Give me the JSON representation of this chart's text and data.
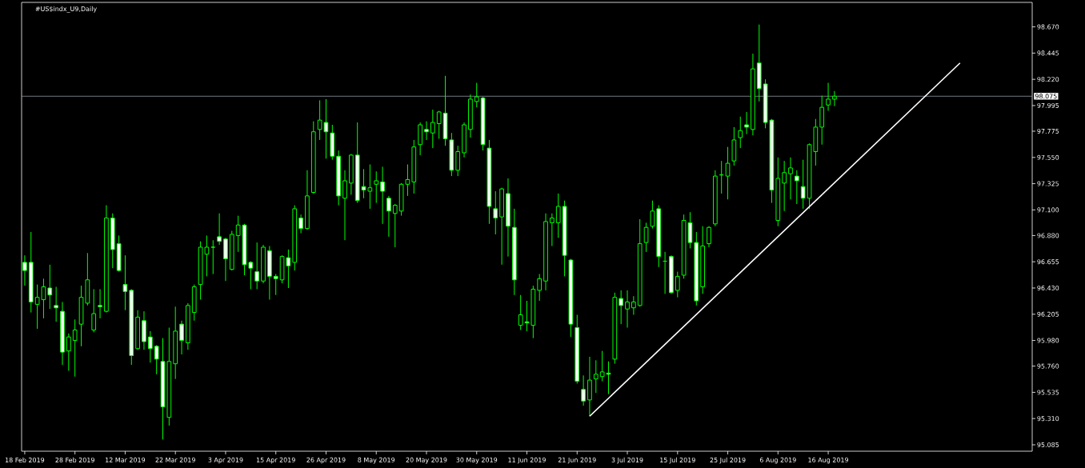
{
  "chart_data": {
    "type": "candlestick",
    "title": "#US$indx_U9,Daily",
    "categories": [
      "18 Feb 2019",
      null,
      null,
      null,
      null,
      null,
      null,
      null,
      "28 Feb 2019",
      null,
      null,
      null,
      null,
      null,
      null,
      null,
      "12 Mar 2019",
      null,
      null,
      null,
      null,
      null,
      null,
      null,
      "22 Mar 2019",
      null,
      null,
      null,
      null,
      null,
      null,
      null,
      "3 Apr 2019",
      null,
      null,
      null,
      null,
      null,
      null,
      null,
      "15 Apr 2019",
      null,
      null,
      null,
      null,
      null,
      null,
      null,
      "26 Apr 2019",
      null,
      null,
      null,
      null,
      null,
      null,
      null,
      "8 May 2019",
      null,
      null,
      null,
      null,
      null,
      null,
      null,
      "20 May 2019",
      null,
      null,
      null,
      null,
      null,
      null,
      null,
      "30 May 2019",
      null,
      null,
      null,
      null,
      null,
      null,
      null,
      "11 Jun 2019",
      null,
      null,
      null,
      null,
      null,
      null,
      null,
      "21 Jun 2019",
      null,
      null,
      null,
      null,
      null,
      null,
      null,
      "3 Jul 2019",
      null,
      null,
      null,
      null,
      null,
      null,
      null,
      "15 Jul 2019",
      null,
      null,
      null,
      null,
      null,
      null,
      null,
      "25 Jul 2019",
      null,
      null,
      null,
      null,
      null,
      null,
      null,
      "6 Aug 2019",
      null,
      null,
      null,
      null,
      null,
      null,
      null,
      "16 Aug 2019",
      null,
      null,
      null,
      null,
      null,
      null,
      null,
      null,
      null,
      null,
      null,
      null,
      null,
      null,
      null,
      null,
      null,
      null,
      null,
      null,
      null,
      null,
      null,
      null,
      null,
      null,
      null,
      null,
      null,
      null,
      null,
      null
    ],
    "ylim": [
      95.03,
      98.88
    ],
    "yticks": [
      {
        "value": 95.085,
        "label": "95.085"
      },
      {
        "value": 95.31,
        "label": "95.310"
      },
      {
        "value": 95.535,
        "label": "95.535"
      },
      {
        "value": 95.76,
        "label": "95.760"
      },
      {
        "value": 95.98,
        "label": "95.980"
      },
      {
        "value": 96.205,
        "label": "96.205"
      },
      {
        "value": 96.43,
        "label": "96.430"
      },
      {
        "value": 96.655,
        "label": "96.655"
      },
      {
        "value": 96.88,
        "label": "96.880"
      },
      {
        "value": 97.1,
        "label": "97.100"
      },
      {
        "value": 97.325,
        "label": "97.325"
      },
      {
        "value": 97.55,
        "label": "97.550"
      },
      {
        "value": 97.775,
        "label": "97.775"
      },
      {
        "value": 97.995,
        "label": "97.995"
      },
      {
        "value": 98.22,
        "label": "98.220"
      },
      {
        "value": 98.445,
        "label": "98.445"
      },
      {
        "value": 98.67,
        "label": "98.670"
      }
    ],
    "ref_lines": [
      {
        "axis": "y",
        "value": 98.075,
        "label": "98.075",
        "color": "#8c96a0"
      }
    ],
    "series": [
      {
        "color": "#00ff00",
        "ohlc": [
          [
            96.65,
            96.71,
            96.45,
            96.58
          ],
          [
            96.65,
            96.91,
            96.22,
            96.31
          ],
          [
            96.29,
            96.46,
            96.08,
            96.35
          ],
          [
            96.33,
            96.51,
            96.17,
            96.44
          ],
          [
            96.43,
            96.63,
            96.25,
            96.37
          ],
          [
            96.28,
            96.44,
            96.14,
            96.26
          ],
          [
            96.23,
            96.31,
            95.77,
            95.88
          ],
          [
            95.89,
            96.04,
            95.72,
            96.01
          ],
          [
            95.98,
            96.16,
            95.67,
            96.07
          ],
          [
            96.12,
            96.45,
            95.93,
            96.35
          ],
          [
            96.3,
            96.73,
            96.28,
            96.5
          ],
          [
            96.07,
            96.42,
            96.05,
            96.21
          ],
          [
            96.28,
            96.42,
            96.17,
            96.27
          ],
          [
            96.23,
            97.14,
            96.22,
            97.03
          ],
          [
            97.03,
            97.07,
            96.6,
            96.76
          ],
          [
            96.81,
            96.88,
            96.57,
            96.58
          ],
          [
            96.46,
            96.71,
            96.24,
            96.4
          ],
          [
            96.41,
            96.42,
            95.77,
            95.85
          ],
          [
            95.91,
            96.24,
            95.9,
            96.18
          ],
          [
            96.15,
            96.23,
            95.9,
            95.97
          ],
          [
            96.01,
            96.06,
            95.79,
            95.91
          ],
          [
            95.93,
            95.94,
            95.69,
            95.82
          ],
          [
            95.8,
            96.0,
            95.13,
            95.41
          ],
          [
            95.32,
            96.09,
            95.25,
            95.8
          ],
          [
            95.78,
            96.27,
            95.65,
            96.06
          ],
          [
            96.12,
            96.15,
            95.86,
            95.98
          ],
          [
            95.96,
            96.3,
            95.9,
            96.28
          ],
          [
            96.22,
            96.46,
            96.15,
            96.44
          ],
          [
            96.46,
            96.83,
            96.33,
            96.78
          ],
          [
            96.72,
            96.88,
            96.53,
            96.78
          ],
          [
            96.78,
            96.84,
            96.55,
            96.78
          ],
          [
            96.87,
            97.07,
            96.8,
            96.83
          ],
          [
            96.85,
            96.86,
            96.49,
            96.68
          ],
          [
            96.59,
            96.92,
            96.58,
            96.89
          ],
          [
            96.88,
            97.05,
            96.74,
            96.97
          ],
          [
            96.97,
            96.98,
            96.54,
            96.63
          ],
          [
            96.65,
            96.66,
            96.42,
            96.6
          ],
          [
            96.57,
            96.82,
            96.42,
            96.49
          ],
          [
            96.49,
            96.8,
            96.47,
            96.78
          ],
          [
            96.75,
            96.79,
            96.33,
            96.53
          ],
          [
            96.53,
            96.55,
            96.37,
            96.51
          ],
          [
            96.5,
            96.71,
            96.47,
            96.7
          ],
          [
            96.69,
            96.76,
            96.43,
            96.62
          ],
          [
            96.65,
            97.14,
            96.58,
            97.11
          ],
          [
            97.03,
            97.06,
            96.9,
            96.94
          ],
          [
            96.94,
            97.44,
            96.93,
            97.22
          ],
          [
            97.25,
            97.86,
            97.24,
            97.77
          ],
          [
            97.79,
            98.04,
            97.7,
            97.87
          ],
          [
            97.85,
            98.05,
            97.54,
            97.77
          ],
          [
            97.76,
            97.83,
            97.53,
            97.56
          ],
          [
            97.56,
            97.61,
            97.14,
            97.22
          ],
          [
            97.2,
            97.44,
            96.84,
            97.35
          ],
          [
            97.33,
            97.58,
            97.23,
            97.57
          ],
          [
            97.57,
            97.85,
            97.16,
            97.18
          ],
          [
            97.3,
            97.45,
            97.2,
            97.27
          ],
          [
            97.26,
            97.49,
            97.11,
            97.29
          ],
          [
            97.32,
            97.43,
            97.16,
            97.35
          ],
          [
            97.34,
            97.47,
            96.98,
            97.26
          ],
          [
            97.2,
            97.22,
            96.87,
            97.09
          ],
          [
            97.07,
            97.15,
            96.78,
            97.14
          ],
          [
            97.09,
            97.33,
            97.05,
            97.32
          ],
          [
            97.32,
            97.49,
            97.22,
            97.36
          ],
          [
            97.34,
            97.7,
            97.24,
            97.64
          ],
          [
            97.66,
            97.85,
            97.57,
            97.83
          ],
          [
            97.79,
            97.86,
            97.7,
            97.77
          ],
          [
            97.76,
            97.96,
            97.63,
            97.85
          ],
          [
            97.84,
            97.95,
            97.71,
            97.94
          ],
          [
            97.93,
            98.25,
            97.65,
            97.71
          ],
          [
            97.7,
            97.76,
            97.39,
            97.44
          ],
          [
            97.44,
            97.65,
            97.39,
            97.6
          ],
          [
            97.59,
            97.85,
            97.55,
            97.83
          ],
          [
            97.79,
            98.09,
            97.72,
            98.05
          ],
          [
            98.03,
            98.19,
            97.98,
            98.07
          ],
          [
            98.06,
            98.07,
            97.61,
            97.66
          ],
          [
            97.63,
            97.7,
            96.98,
            97.13
          ],
          [
            97.11,
            97.26,
            96.89,
            97.03
          ],
          [
            97.04,
            97.29,
            96.63,
            97.28
          ],
          [
            97.24,
            97.37,
            96.7,
            96.96
          ],
          [
            96.95,
            97.11,
            96.37,
            96.5
          ],
          [
            96.11,
            96.37,
            96.07,
            96.2
          ],
          [
            96.14,
            96.32,
            96.06,
            96.13
          ],
          [
            96.11,
            96.45,
            96.0,
            96.42
          ],
          [
            96.41,
            96.55,
            96.32,
            96.51
          ],
          [
            96.49,
            97.07,
            96.41,
            97.0
          ],
          [
            96.99,
            97.07,
            96.79,
            97.03
          ],
          [
            96.99,
            97.24,
            96.86,
            97.13
          ],
          [
            97.13,
            97.18,
            96.53,
            96.71
          ],
          [
            96.67,
            96.68,
            96.01,
            96.12
          ],
          [
            96.09,
            96.2,
            95.61,
            95.63
          ],
          [
            95.56,
            95.68,
            95.42,
            95.46
          ],
          [
            95.47,
            95.84,
            95.33,
            95.64
          ],
          [
            95.65,
            95.81,
            95.53,
            95.69
          ],
          [
            95.67,
            95.89,
            95.63,
            95.71
          ],
          [
            95.7,
            95.8,
            95.52,
            95.69
          ],
          [
            95.82,
            96.39,
            95.78,
            96.35
          ],
          [
            96.34,
            96.41,
            96.12,
            96.28
          ],
          [
            96.25,
            96.41,
            96.09,
            96.31
          ],
          [
            96.26,
            96.36,
            96.2,
            96.31
          ],
          [
            96.28,
            97.02,
            96.27,
            96.81
          ],
          [
            96.82,
            96.99,
            96.74,
            96.95
          ],
          [
            96.96,
            97.18,
            96.94,
            97.09
          ],
          [
            97.11,
            97.14,
            96.61,
            96.7
          ],
          [
            96.66,
            96.74,
            96.38,
            96.66
          ],
          [
            96.7,
            96.71,
            96.38,
            96.39
          ],
          [
            96.41,
            96.57,
            96.35,
            96.53
          ],
          [
            96.54,
            97.06,
            96.51,
            97.01
          ],
          [
            96.99,
            97.08,
            96.77,
            96.82
          ],
          [
            96.82,
            96.91,
            96.28,
            96.32
          ],
          [
            96.44,
            96.96,
            96.38,
            96.79
          ],
          [
            96.81,
            96.96,
            96.78,
            96.95
          ],
          [
            96.98,
            97.44,
            96.96,
            97.39
          ],
          [
            97.4,
            97.52,
            97.24,
            97.4
          ],
          [
            97.39,
            97.64,
            97.19,
            97.5
          ],
          [
            97.52,
            97.81,
            97.48,
            97.7
          ],
          [
            97.72,
            97.9,
            97.63,
            97.78
          ],
          [
            97.83,
            97.94,
            97.75,
            97.81
          ],
          [
            97.79,
            98.44,
            97.74,
            98.31
          ],
          [
            98.36,
            98.69,
            98.03,
            98.14
          ],
          [
            98.18,
            98.22,
            97.8,
            97.85
          ],
          [
            97.87,
            97.88,
            97.16,
            97.27
          ],
          [
            97.01,
            97.55,
            96.96,
            97.37
          ],
          [
            97.33,
            97.52,
            97.09,
            97.42
          ],
          [
            97.41,
            97.55,
            97.19,
            97.46
          ],
          [
            97.39,
            97.44,
            97.15,
            97.35
          ],
          [
            97.3,
            97.53,
            97.11,
            97.2
          ],
          [
            97.2,
            97.67,
            97.11,
            97.66
          ],
          [
            97.6,
            97.88,
            97.48,
            97.81
          ],
          [
            97.81,
            98.08,
            97.66,
            97.98
          ],
          [
            98.0,
            98.19,
            97.95,
            98.05
          ],
          [
            98.05,
            98.12,
            97.99,
            98.075
          ],
          null,
          null,
          null,
          null,
          null,
          null,
          null,
          null,
          null,
          null,
          null,
          null,
          null,
          null,
          null,
          null,
          null,
          null,
          null,
          null,
          null,
          null,
          null,
          null,
          null,
          null,
          null,
          null,
          null,
          null,
          null
        ]
      },
      {
        "type": "line",
        "values": [
          null,
          null,
          null,
          null,
          null,
          null,
          null,
          null,
          null,
          null,
          null,
          null,
          null,
          null,
          null,
          null,
          null,
          null,
          null,
          null,
          null,
          null,
          null,
          null,
          null,
          null,
          null,
          null,
          null,
          null,
          null,
          null,
          null,
          null,
          null,
          null,
          null,
          null,
          null,
          null,
          null,
          null,
          null,
          null,
          null,
          null,
          null,
          null,
          null,
          null,
          null,
          null,
          null,
          null,
          null,
          null,
          null,
          null,
          null,
          null,
          null,
          null,
          null,
          null,
          null,
          null,
          null,
          null,
          null,
          null,
          null,
          null,
          null,
          null,
          null,
          null,
          null,
          null,
          null,
          null,
          null,
          null,
          null,
          null,
          null,
          null,
          null,
          null,
          null,
          null,
          95.33,
          null,
          null,
          null,
          null,
          null,
          null,
          null,
          null,
          null,
          null,
          null,
          null,
          null,
          null,
          null,
          null,
          null,
          null,
          null,
          null,
          null,
          null,
          null,
          null,
          null,
          null,
          null,
          null,
          null,
          null,
          null,
          null,
          null,
          null,
          null,
          null,
          null,
          null,
          null,
          null,
          null,
          null,
          null,
          null,
          null,
          null,
          null,
          null,
          null,
          null,
          null,
          null,
          null,
          null,
          null,
          null,
          null,
          null,
          98.36,
          null,
          null,
          null,
          null,
          null,
          null,
          null,
          null,
          null,
          null,
          null
        ],
        "color": "#ffffff"
      }
    ]
  }
}
